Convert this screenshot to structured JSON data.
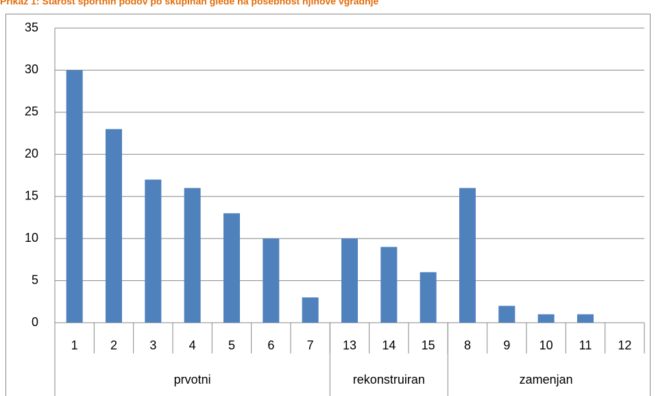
{
  "chart_data": {
    "type": "bar",
    "title": "Prikaz 1: Starost športnih podov po skupinah glede na posebnost njihove vgradnje",
    "categories": [
      "1",
      "2",
      "3",
      "4",
      "5",
      "6",
      "7",
      "13",
      "14",
      "15",
      "8",
      "9",
      "10",
      "11",
      "12"
    ],
    "values": [
      30,
      23,
      17,
      16,
      13,
      10,
      3,
      10,
      9,
      6,
      16,
      2,
      1,
      1,
      0
    ],
    "groups": [
      {
        "label": "prvotni",
        "span": 7
      },
      {
        "label": "rekonstruiran",
        "span": 3
      },
      {
        "label": "zamenjan",
        "span": 5
      }
    ],
    "color": "#4f81bd",
    "ylim": [
      0,
      35
    ],
    "yticks": [
      0,
      5,
      10,
      15,
      20,
      25,
      30,
      35
    ],
    "grid": true
  }
}
